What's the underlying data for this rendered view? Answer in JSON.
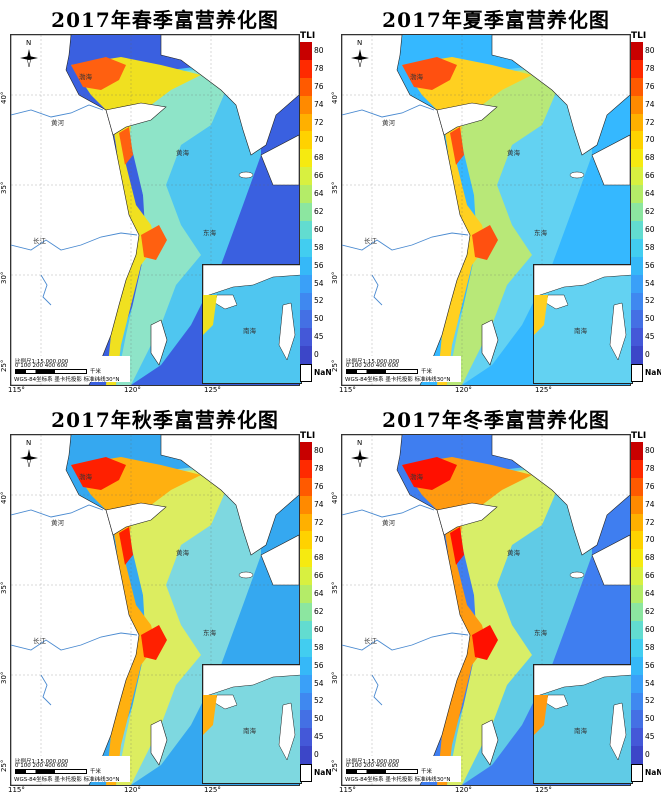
{
  "panels": [
    {
      "title": "2017年春季富营养化图",
      "ocean": "#3a60e0",
      "shelf": "#4fc6f0",
      "mid": "#8ee4c8",
      "coast": "#f0e020",
      "hot": "#ff6010"
    },
    {
      "title": "2017年夏季富营养化图",
      "ocean": "#35b8ff",
      "shelf": "#63d2f2",
      "mid": "#b8e878",
      "coast": "#ffd020",
      "hot": "#ff5010"
    },
    {
      "title": "2017年秋季富营养化图",
      "ocean": "#35a8f0",
      "shelf": "#7ed8e0",
      "mid": "#dced60",
      "coast": "#ffb010",
      "hot": "#ff2000"
    },
    {
      "title": "2017年冬季富营养化图",
      "ocean": "#3f7ef0",
      "shelf": "#60cbe6",
      "mid": "#d8ee68",
      "coast": "#ff9a10",
      "hot": "#ff1000"
    }
  ],
  "legend": {
    "title": "TLI",
    "ticks": [
      "80",
      "78",
      "76",
      "74",
      "72",
      "70",
      "68",
      "66",
      "64",
      "62",
      "60",
      "58",
      "56",
      "54",
      "52",
      "50",
      "45",
      "0",
      "NaN"
    ],
    "colors": [
      "#c80000",
      "#ff2a00",
      "#ff5a00",
      "#ff8a00",
      "#ffb000",
      "#ffd200",
      "#f6ea10",
      "#d8f040",
      "#b4ec68",
      "#8ce6a0",
      "#62dcd0",
      "#42cdf0",
      "#36b8f8",
      "#3aa0f8",
      "#3f88f0",
      "#4470e4",
      "#4458d8",
      "#3c46c8",
      "#ffffff"
    ]
  },
  "axes": {
    "lat": [
      "40°",
      "35°",
      "30°",
      "25°"
    ],
    "lon": [
      "115°",
      "120°",
      "125°"
    ]
  },
  "scale": {
    "ratio": "比例尺1:15,000,000",
    "units": "0  100 200    400     600",
    "km": "千米",
    "crs": "WGS-84坐标系  墨卡托投影  标准纬线30°N"
  },
  "labels": {
    "north": "N",
    "bohai": "渤海",
    "huanghe": "黄河",
    "yellowsea": "黄海",
    "eastsea": "东海",
    "changjiang": "长江",
    "southsea": "南海"
  },
  "colors": {
    "land": "#ffffff",
    "river": "#4a8ad0",
    "border": "#222222"
  }
}
